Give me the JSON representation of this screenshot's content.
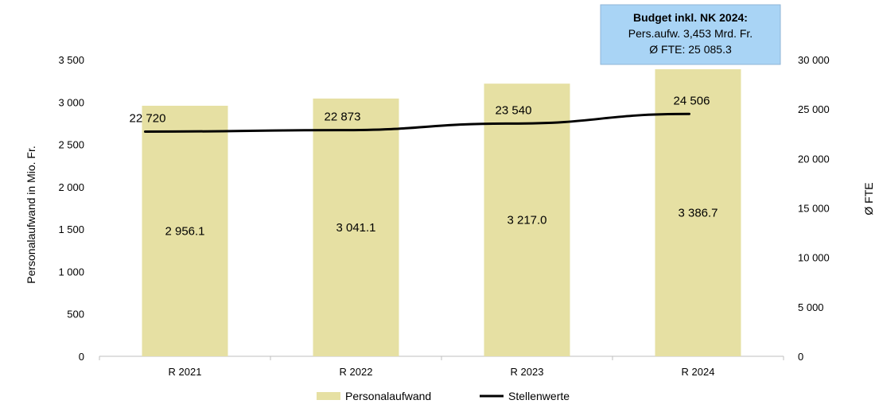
{
  "chart_data": {
    "type": "bar",
    "categories": [
      "R 2021",
      "R 2022",
      "R 2023",
      "R 2024"
    ],
    "series": [
      {
        "name": "Personalaufwand",
        "type": "bar",
        "axis": "left",
        "values": [
          2956.1,
          3041.1,
          3217.0,
          3386.7
        ],
        "labels": [
          "2 956.1",
          "3 041.1",
          "3 217.0",
          "3 386.7"
        ],
        "color": "#e6e0a3"
      },
      {
        "name": "Stellenwerte",
        "type": "line",
        "axis": "right",
        "values": [
          22720,
          22873,
          23540,
          24506
        ],
        "labels": [
          "22 720",
          "22 873",
          "23 540",
          "24 506"
        ],
        "color": "#000000"
      }
    ],
    "ylabel": "Personalaufwand in Mio. Fr.",
    "y2label": "Ø FTE",
    "ylim": [
      0,
      3500
    ],
    "y2lim": [
      0,
      30000
    ],
    "yticks": [
      "0",
      "500",
      "1 000",
      "1 500",
      "2 000",
      "2 500",
      "3 000",
      "3 500"
    ],
    "y2ticks": [
      "0",
      "5 000",
      "10 000",
      "15 000",
      "20 000",
      "25 000",
      "30 000"
    ],
    "grid": false,
    "legend": "bottom-center",
    "annotation": {
      "title": "Budget inkl. NK 2024:",
      "lines": [
        "Pers.aufw. 3,453 Mrd. Fr.",
        "Ø FTE: 25 085.3"
      ],
      "background": "#a9d4f5"
    }
  }
}
